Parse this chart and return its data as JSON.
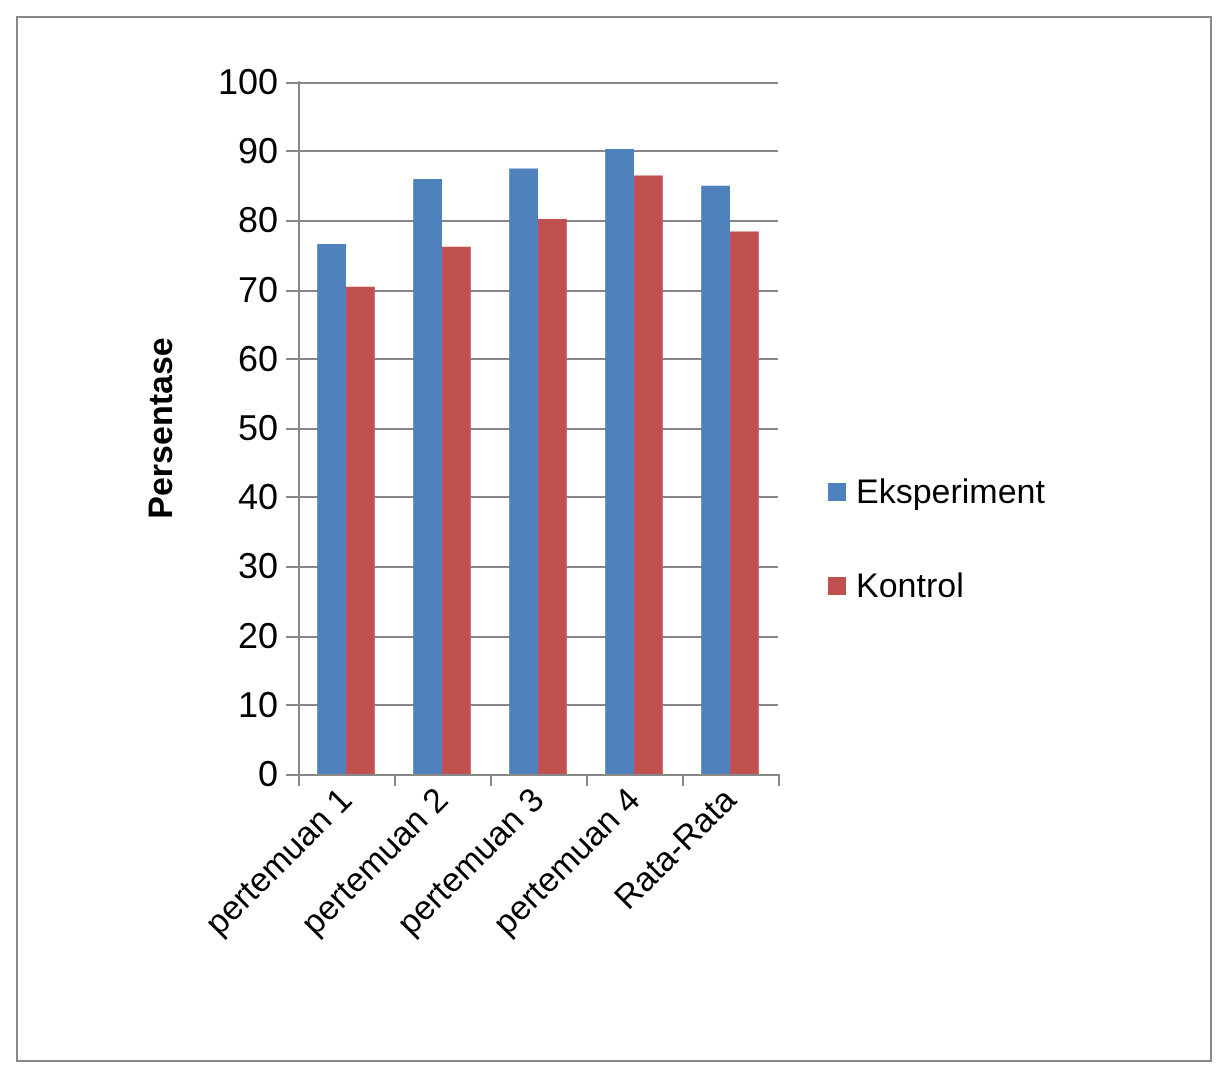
{
  "chart_data": {
    "type": "bar",
    "ylabel": "Persentase",
    "categories": [
      "pertemuan 1",
      "pertemuan 2",
      "pertemuan 3",
      "pertemuan 4",
      "Rata-Rata"
    ],
    "series": [
      {
        "name": "Eksperiment",
        "color": "#4f81bd",
        "values": [
          76.6,
          86,
          87.5,
          90.3,
          85
        ]
      },
      {
        "name": "Kontrol",
        "color": "#c0504d",
        "values": [
          70.4,
          76.2,
          80.2,
          86.5,
          78.4
        ]
      }
    ],
    "ylim": [
      0,
      100
    ],
    "yticks": [
      0,
      10,
      20,
      30,
      40,
      50,
      60,
      70,
      80,
      90,
      100
    ],
    "grid": "y",
    "legend": "right"
  }
}
